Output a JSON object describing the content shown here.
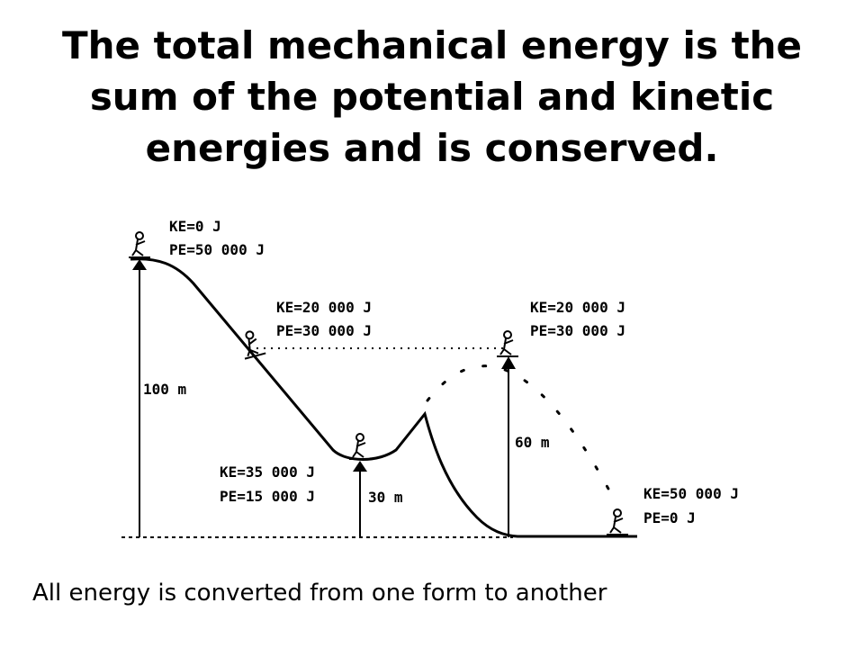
{
  "title": {
    "line1": "The total mechanical energy is the",
    "line2": "sum of the potential and kinetic",
    "line3": "energies and  is conserved."
  },
  "caption": "All energy is converted from one form to another",
  "diagram": {
    "top": {
      "ke": "KE=0 J",
      "pe": "PE=50 000 J"
    },
    "slope": {
      "ke": "KE=20 000 J",
      "pe": "PE=30 000 J"
    },
    "valley": {
      "ke": "KE=35 000 J",
      "pe": "PE=15 000 J"
    },
    "peak": {
      "ke": "KE=20 000 J",
      "pe": "PE=30 000 J"
    },
    "bottom": {
      "ke": "KE=50 000 J",
      "pe": "PE=0 J"
    },
    "heights": {
      "h100": "100 m",
      "h30": "30 m",
      "h60": "60 m"
    }
  }
}
